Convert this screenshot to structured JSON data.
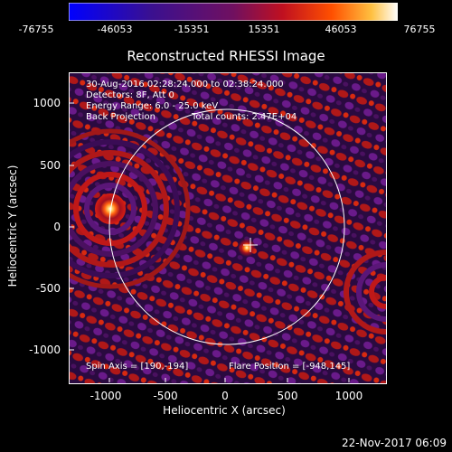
{
  "colorbar": {
    "ticks": [
      "-76755",
      "-46053",
      "-15351",
      "15351",
      "46053",
      "76755"
    ]
  },
  "plot": {
    "title": "Reconstructed RHESSI Image",
    "info": [
      "30-Aug-2016 02:28:24.000 to 02:38:24.000",
      "Detectors: 8F, Att 0",
      "Energy Range: 6.0 - 25.0 keV",
      "Back Projection",
      "Total counts: 2.47E+04"
    ],
    "spin_axis": "Spin Axis = [190,-194]",
    "flare_position": "Flare Position = [-948,145]"
  },
  "axes": {
    "xlabel": "Heliocentric X (arcsec)",
    "ylabel": "Heliocentric Y (arcsec)",
    "xticks": [
      "-1000",
      "-500",
      "0",
      "500",
      "1000"
    ],
    "yticks": [
      "1000",
      "500",
      "0",
      "-500",
      "-1000"
    ]
  },
  "footer": {
    "timestamp": "22-Nov-2017 06:09"
  }
}
